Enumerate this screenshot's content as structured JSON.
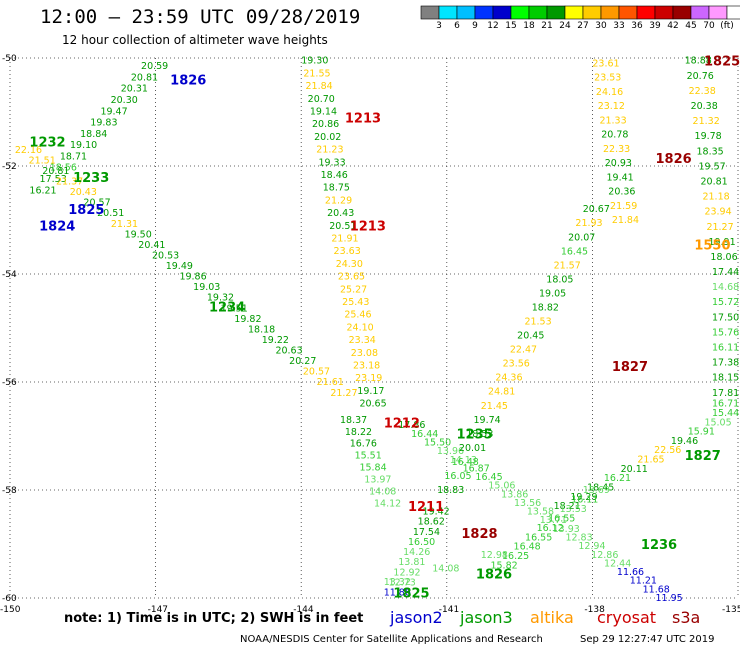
{
  "header": {
    "title": "12:00 – 23:59 UTC 09/28/2019",
    "subtitle": "12 hour collection of altimeter wave heights"
  },
  "colorbar": {
    "colors": [
      "#808080",
      "#00e5ff",
      "#00bfff",
      "#0033ff",
      "#0000cc",
      "#00ff00",
      "#00cc00",
      "#009900",
      "#ffff00",
      "#ffcc00",
      "#ff9900",
      "#ff5500",
      "#ff0000",
      "#cc0000",
      "#990000",
      "#cc66ff",
      "#ff99ff",
      "#ffffff"
    ],
    "labels": [
      "3",
      "6",
      "9",
      "12",
      "15",
      "18",
      "21",
      "24",
      "27",
      "30",
      "33",
      "36",
      "39",
      "42",
      "45",
      "70",
      "(ft)"
    ]
  },
  "axes": {
    "lat_ticks": [
      "-50",
      "-52",
      "-54",
      "-56",
      "-58",
      "-60"
    ],
    "lon_ticks": [
      "-150",
      "-147",
      "-144",
      "-141",
      "-138",
      "-135"
    ]
  },
  "footer": {
    "note": "note:  1) Time is in UTC;  2) SWH is in feet",
    "satellites": [
      {
        "name": "jason2",
        "color": "#0000cc"
      },
      {
        "name": "jason3",
        "color": "#009900"
      },
      {
        "name": "altika",
        "color": "#ff9900"
      },
      {
        "name": "cryosat",
        "color": "#cc0000"
      },
      {
        "name": "s3a",
        "color": "#990000"
      }
    ],
    "credit": "NOAA/NESDIS Center for Satellite Applications and Research",
    "timestamp": "Sep 29 12:27:47 UTC 2019"
  },
  "labels": [
    {
      "t": "1826",
      "lon": -146.7,
      "lat": -50.4,
      "c": "#0000cc",
      "big": true
    },
    {
      "t": "1232",
      "lon": -149.6,
      "lat": -51.55,
      "c": "#009900",
      "big": true
    },
    {
      "t": "1233",
      "lon": -148.7,
      "lat": -52.2,
      "c": "#009900",
      "big": true
    },
    {
      "t": "1825",
      "lon": -148.8,
      "lat": -52.8,
      "c": "#0000cc",
      "big": true
    },
    {
      "t": "1824",
      "lon": -149.4,
      "lat": -53.1,
      "c": "#0000cc",
      "big": true
    },
    {
      "t": "1234",
      "lon": -145.9,
      "lat": -54.6,
      "c": "#009900",
      "big": true
    },
    {
      "t": "1213",
      "lon": -143.1,
      "lat": -51.1,
      "c": "#cc0000",
      "big": true
    },
    {
      "t": "1213",
      "lon": -143.0,
      "lat": -53.1,
      "c": "#cc0000",
      "big": true
    },
    {
      "t": "1212",
      "lon": -142.3,
      "lat": -56.75,
      "c": "#cc0000",
      "big": true
    },
    {
      "t": "1235",
      "lon": -140.8,
      "lat": -56.95,
      "c": "#009900",
      "big": true
    },
    {
      "t": "1211",
      "lon": -141.8,
      "lat": -58.3,
      "c": "#cc0000",
      "big": true
    },
    {
      "t": "1828",
      "lon": -140.7,
      "lat": -58.8,
      "c": "#990000",
      "big": true
    },
    {
      "t": "1826",
      "lon": -140.4,
      "lat": -59.55,
      "c": "#009900",
      "big": true
    },
    {
      "t": "1825",
      "lon": -142.1,
      "lat": -59.9,
      "c": "#009900",
      "big": true
    },
    {
      "t": "1236",
      "lon": -137.0,
      "lat": -59.0,
      "c": "#009900",
      "big": true
    },
    {
      "t": "1827",
      "lon": -137.6,
      "lat": -55.7,
      "c": "#990000",
      "big": true
    },
    {
      "t": "1827",
      "lon": -136.1,
      "lat": -57.35,
      "c": "#009900",
      "big": true
    },
    {
      "t": "1550",
      "lon": -135.9,
      "lat": -53.45,
      "c": "#ff9900",
      "big": true
    },
    {
      "t": "1826",
      "lon": -136.7,
      "lat": -51.85,
      "c": "#990000",
      "big": true
    },
    {
      "t": "1825",
      "lon": -135.7,
      "lat": -50.05,
      "c": "#990000",
      "big": true
    }
  ],
  "tracks": [
    {
      "name": "jason2-1826-a",
      "lon0": -149.6,
      "lat0": -52.45,
      "lon1": -147.3,
      "lat1": -50.15,
      "vals": [
        [
          "16.21",
          "#009900"
        ],
        [
          "17.53",
          "#009900"
        ],
        [
          "18.56",
          "#33cc33"
        ],
        [
          "18.71",
          "#009900"
        ],
        [
          "19.10",
          "#009900"
        ],
        [
          "18.84",
          "#009900"
        ],
        [
          "19.83",
          "#009900"
        ],
        [
          "19.47",
          "#009900"
        ],
        [
          "20.30",
          "#009900"
        ],
        [
          "20.31",
          "#009900"
        ],
        [
          "20.81",
          "#009900"
        ],
        [
          "20.59",
          "#009900"
        ]
      ]
    },
    {
      "name": "jason2-1232-a",
      "lon0": -149.9,
      "lat0": -51.7,
      "lon1": -143.4,
      "lat1": -56.2,
      "vals": [
        [
          "22.16",
          "#ffcc00"
        ],
        [
          "21.51",
          "#ffcc00"
        ],
        [
          "20.81",
          "#009900"
        ],
        [
          "21.37",
          "#ffcc00"
        ],
        [
          "20.43",
          "#ffcc00"
        ],
        [
          "20.57",
          "#009900"
        ],
        [
          "20.51",
          "#009900"
        ],
        [
          "21.31",
          "#ffcc00"
        ],
        [
          "19.50",
          "#009900"
        ],
        [
          "20.41",
          "#009900"
        ],
        [
          "20.53",
          "#009900"
        ],
        [
          "19.49",
          "#009900"
        ],
        [
          "19.86",
          "#009900"
        ],
        [
          "19.03",
          "#009900"
        ],
        [
          "19.32",
          "#009900"
        ],
        [
          "19.51",
          "#009900"
        ],
        [
          "19.82",
          "#009900"
        ],
        [
          "18.18",
          "#009900"
        ],
        [
          "19.22",
          "#009900"
        ],
        [
          "20.63",
          "#009900"
        ],
        [
          "20.27",
          "#009900"
        ],
        [
          "20.57",
          "#ffcc00"
        ],
        [
          "21.61",
          "#ffcc00"
        ],
        [
          "21.27",
          "#ffcc00"
        ]
      ]
    },
    {
      "name": "jason3-1213-a",
      "lon0": -144.0,
      "lat0": -50.05,
      "lon1": -142.8,
      "lat1": -56.4,
      "vals": [
        [
          "19.30",
          "#009900"
        ],
        [
          "21.55",
          "#ffcc00"
        ],
        [
          "21.84",
          "#ffcc00"
        ],
        [
          "20.70",
          "#009900"
        ],
        [
          "19.14",
          "#009900"
        ],
        [
          "20.86",
          "#009900"
        ],
        [
          "20.02",
          "#009900"
        ],
        [
          "21.23",
          "#ffcc00"
        ],
        [
          "19.33",
          "#009900"
        ],
        [
          "18.46",
          "#009900"
        ],
        [
          "18.75",
          "#009900"
        ],
        [
          "21.29",
          "#ffcc00"
        ],
        [
          "20.43",
          "#009900"
        ],
        [
          "20.51",
          "#009900"
        ],
        [
          "21.91",
          "#ffcc00"
        ],
        [
          "23.63",
          "#ffcc00"
        ],
        [
          "24.30",
          "#ffcc00"
        ],
        [
          "23.65",
          "#ffcc00"
        ],
        [
          "25.27",
          "#ffcc00"
        ],
        [
          "25.43",
          "#ffcc00"
        ],
        [
          "25.46",
          "#ffcc00"
        ],
        [
          "24.10",
          "#ffcc00"
        ],
        [
          "23.34",
          "#ffcc00"
        ],
        [
          "23.08",
          "#ffcc00"
        ],
        [
          "23.18",
          "#ffcc00"
        ],
        [
          "23.19",
          "#ffcc00"
        ],
        [
          "19.17",
          "#009900"
        ],
        [
          "20.65",
          "#009900"
        ]
      ]
    },
    {
      "name": "jason3-1212-a",
      "lon0": -143.2,
      "lat0": -56.7,
      "lon1": -142.5,
      "lat1": -58.25,
      "vals": [
        [
          "18.37",
          "#009900"
        ],
        [
          "18.22",
          "#009900"
        ],
        [
          "16.76",
          "#009900"
        ],
        [
          "15.51",
          "#33cc33"
        ],
        [
          "15.84",
          "#33cc33"
        ],
        [
          "13.97",
          "#66dd66"
        ],
        [
          "14.08",
          "#66dd66"
        ],
        [
          "14.12",
          "#66dd66"
        ]
      ]
    },
    {
      "name": "jason3-1211-a",
      "lon0": -141.5,
      "lat0": -58.4,
      "lon1": -142.3,
      "lat1": -59.9,
      "vals": [
        [
          "19.42",
          "#009900"
        ],
        [
          "18.62",
          "#009900"
        ],
        [
          "17.54",
          "#009900"
        ],
        [
          "16.50",
          "#33cc33"
        ],
        [
          "14.26",
          "#66dd66"
        ],
        [
          "13.81",
          "#66dd66"
        ],
        [
          "12.92",
          "#66dd66"
        ],
        [
          "12.73",
          "#66dd66"
        ],
        [
          "11.86",
          "#0000cc"
        ]
      ]
    },
    {
      "name": "jason3-1235-a",
      "lon0": -142.0,
      "lat0": -56.8,
      "lon1": -136.7,
      "lat1": -60.0,
      "vals": [
        [
          "17.86",
          "#009900"
        ],
        [
          "16.44",
          "#33cc33"
        ],
        [
          "15.50",
          "#33cc33"
        ],
        [
          "13.96",
          "#66dd66"
        ],
        [
          "14.13",
          "#66dd66"
        ],
        [
          "16.87",
          "#33cc33"
        ],
        [
          "16.45",
          "#33cc33"
        ],
        [
          "15.06",
          "#66dd66"
        ],
        [
          "13.86",
          "#66dd66"
        ],
        [
          "13.56",
          "#66dd66"
        ],
        [
          "13.58",
          "#66dd66"
        ],
        [
          "13.71",
          "#66dd66"
        ],
        [
          "13.93",
          "#66dd66"
        ],
        [
          "12.83",
          "#66dd66"
        ],
        [
          "12.94",
          "#66dd66"
        ],
        [
          "12.86",
          "#66dd66"
        ],
        [
          "12.44",
          "#66dd66"
        ],
        [
          "11.66",
          "#0000cc"
        ],
        [
          "11.21",
          "#0000cc"
        ],
        [
          "11.68",
          "#0000cc"
        ],
        [
          "11.95",
          "#0000cc"
        ]
      ]
    },
    {
      "name": "altika-1827-a",
      "lon0": -141.2,
      "lat0": -58.0,
      "lon1": -138.2,
      "lat1": -52.8,
      "vals": [
        [
          "18.83",
          "#009900"
        ],
        [
          "16.05",
          "#33cc33"
        ],
        [
          "16.48",
          "#33cc33"
        ],
        [
          "20.01",
          "#009900"
        ],
        [
          "18.53",
          "#009900"
        ],
        [
          "19.74",
          "#009900"
        ],
        [
          "21.45",
          "#ffcc00"
        ],
        [
          "24.81",
          "#ffcc00"
        ],
        [
          "24.36",
          "#ffcc00"
        ],
        [
          "23.56",
          "#ffcc00"
        ],
        [
          "22.47",
          "#ffcc00"
        ],
        [
          "20.45",
          "#009900"
        ],
        [
          "21.53",
          "#ffcc00"
        ],
        [
          "18.82",
          "#009900"
        ],
        [
          "19.05",
          "#009900"
        ],
        [
          "18.05",
          "#009900"
        ],
        [
          "21.57",
          "#ffcc00"
        ],
        [
          "16.45",
          "#33cc33"
        ],
        [
          "20.07",
          "#009900"
        ],
        [
          "21.93",
          "#ffcc00"
        ],
        [
          "20.67",
          "#009900"
        ]
      ]
    },
    {
      "name": "cryosat-1826-a",
      "lon0": -138.0,
      "lat0": -50.1,
      "lon1": -137.6,
      "lat1": -53.0,
      "vals": [
        [
          "23.61",
          "#ffcc00"
        ],
        [
          "23.53",
          "#ffcc00"
        ],
        [
          "24.16",
          "#ffcc00"
        ],
        [
          "23.12",
          "#ffcc00"
        ],
        [
          "21.33",
          "#ffcc00"
        ],
        [
          "20.78",
          "#009900"
        ],
        [
          "22.33",
          "#ffcc00"
        ],
        [
          "20.93",
          "#009900"
        ],
        [
          "19.41",
          "#009900"
        ],
        [
          "20.36",
          "#009900"
        ],
        [
          "21.59",
          "#ffcc00"
        ],
        [
          "21.84",
          "#ffcc00"
        ]
      ]
    },
    {
      "name": "s3a-1825-a",
      "lon0": -136.1,
      "lat0": -50.05,
      "lon1": -135.2,
      "lat1": -56.2,
      "vals": [
        [
          "18.88",
          "#009900"
        ],
        [
          "20.76",
          "#009900"
        ],
        [
          "22.38",
          "#ffcc00"
        ],
        [
          "20.38",
          "#009900"
        ],
        [
          "21.32",
          "#ffcc00"
        ],
        [
          "19.78",
          "#009900"
        ],
        [
          "18.35",
          "#009900"
        ],
        [
          "19.57",
          "#009900"
        ],
        [
          "20.81",
          "#009900"
        ],
        [
          "21.18",
          "#ffcc00"
        ],
        [
          "23.94",
          "#ffcc00"
        ],
        [
          "21.27",
          "#ffcc00"
        ],
        [
          "19.91",
          "#009900"
        ],
        [
          "18.06",
          "#009900"
        ],
        [
          "17.44",
          "#009900"
        ],
        [
          "14.68",
          "#66dd66"
        ],
        [
          "15.72",
          "#33cc33"
        ],
        [
          "17.50",
          "#009900"
        ],
        [
          "15.76",
          "#33cc33"
        ],
        [
          "16.11",
          "#33cc33"
        ],
        [
          "17.38",
          "#009900"
        ],
        [
          "18.15",
          "#009900"
        ],
        [
          "17.81",
          "#009900"
        ]
      ]
    },
    {
      "name": "s3a-1827-b",
      "lon0": -138.8,
      "lat0": -58.3,
      "lon1": -135.0,
      "lat1": -56.4,
      "vals": [
        [
          "18.21",
          "#009900"
        ],
        [
          "19.29",
          "#009900"
        ],
        [
          "18.45",
          "#009900"
        ],
        [
          "16.21",
          "#33cc33"
        ],
        [
          "20.11",
          "#009900"
        ],
        [
          "21.65",
          "#ffcc00"
        ],
        [
          "22.56",
          "#ffcc00"
        ],
        [
          "19.46",
          "#009900"
        ],
        [
          "15.91",
          "#33cc33"
        ],
        [
          "15.05",
          "#66dd66"
        ],
        [
          "15.44",
          "#33cc33"
        ],
        [
          "16.71",
          "#33cc33"
        ]
      ]
    },
    {
      "name": "jason2-1825-b",
      "lon0": -140.1,
      "lat0": -59.4,
      "lon1": -138.2,
      "lat1": -58.0,
      "vals": [
        [
          "15.82",
          "#33cc33"
        ],
        [
          "16.25",
          "#33cc33"
        ],
        [
          "16.48",
          "#33cc33"
        ],
        [
          "16.55",
          "#33cc33"
        ],
        [
          "16.12",
          "#33cc33"
        ],
        [
          "16.55",
          "#33cc33"
        ],
        [
          "13.53",
          "#66dd66"
        ],
        [
          "16.11",
          "#33cc33"
        ],
        [
          "13.69",
          "#66dd66"
        ]
      ]
    },
    {
      "name": "jason3-1825-b",
      "lon0": -142.3,
      "lat0": -59.7,
      "lon1": -140.3,
      "lat1": -59.2,
      "vals": [
        [
          "13.32",
          "#66dd66"
        ],
        [
          "14.08",
          "#66dd66"
        ],
        [
          "12.98",
          "#66dd66"
        ]
      ]
    }
  ]
}
